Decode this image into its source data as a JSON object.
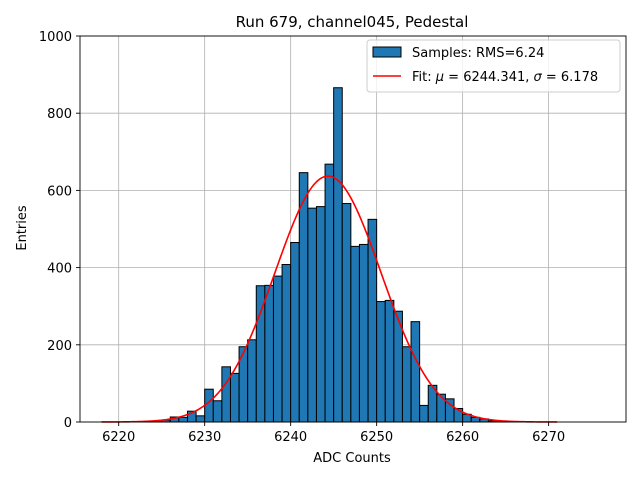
{
  "chart_data": {
    "type": "bar",
    "title": "Run 679, channel045, Pedestal",
    "xlabel": "ADC Counts",
    "ylabel": "Entries",
    "xlim": [
      6215.5,
      6279
    ],
    "ylim": [
      0,
      1000
    ],
    "xticks": [
      6220,
      6230,
      6240,
      6250,
      6260,
      6270
    ],
    "yticks": [
      0,
      200,
      400,
      600,
      800,
      1000
    ],
    "grid": true,
    "legend": {
      "placement": "top-right",
      "entries": [
        {
          "label": "Samples: RMS=6.24",
          "kind": "patch"
        },
        {
          "label": "Fit: μ = 6244.341, σ = 6.178",
          "label_parts": [
            "Fit: ",
            "μ",
            " = 6244.341, ",
            "σ",
            " = 6.178"
          ],
          "kind": "line"
        }
      ]
    },
    "histogram": {
      "name": "Samples: RMS=6.24",
      "color": "#1f77b4",
      "edgecolor": "#000000",
      "bin_width": 1,
      "bins": [
        [
          6223,
          2
        ],
        [
          6224,
          3
        ],
        [
          6225,
          5
        ],
        [
          6226,
          13
        ],
        [
          6227,
          12
        ],
        [
          6228,
          28
        ],
        [
          6229,
          16
        ],
        [
          6230,
          85
        ],
        [
          6231,
          55
        ],
        [
          6232,
          143
        ],
        [
          6233,
          126
        ],
        [
          6234,
          195
        ],
        [
          6235,
          213
        ],
        [
          6236,
          353
        ],
        [
          6237,
          354
        ],
        [
          6238,
          378
        ],
        [
          6239,
          408
        ],
        [
          6240,
          465
        ],
        [
          6241,
          646
        ],
        [
          6242,
          554
        ],
        [
          6243,
          558
        ],
        [
          6244,
          668
        ],
        [
          6245,
          866
        ],
        [
          6246,
          566
        ],
        [
          6247,
          455
        ],
        [
          6248,
          460
        ],
        [
          6249,
          525
        ],
        [
          6250,
          312
        ],
        [
          6251,
          315
        ],
        [
          6252,
          287
        ],
        [
          6253,
          195
        ],
        [
          6254,
          260
        ],
        [
          6255,
          43
        ],
        [
          6256,
          95
        ],
        [
          6257,
          72
        ],
        [
          6258,
          60
        ],
        [
          6259,
          35
        ],
        [
          6260,
          20
        ],
        [
          6261,
          12
        ],
        [
          6262,
          8
        ],
        [
          6263,
          3
        ],
        [
          6264,
          2
        ],
        [
          6265,
          1
        ]
      ]
    },
    "fit": {
      "name": "Fit: μ = 6244.341, σ = 6.178",
      "type": "gaussian",
      "mu": 6244.341,
      "sigma": 6.178,
      "amplitude": 637,
      "x_range": [
        6218,
        6271
      ],
      "color": "#ff0000"
    }
  }
}
